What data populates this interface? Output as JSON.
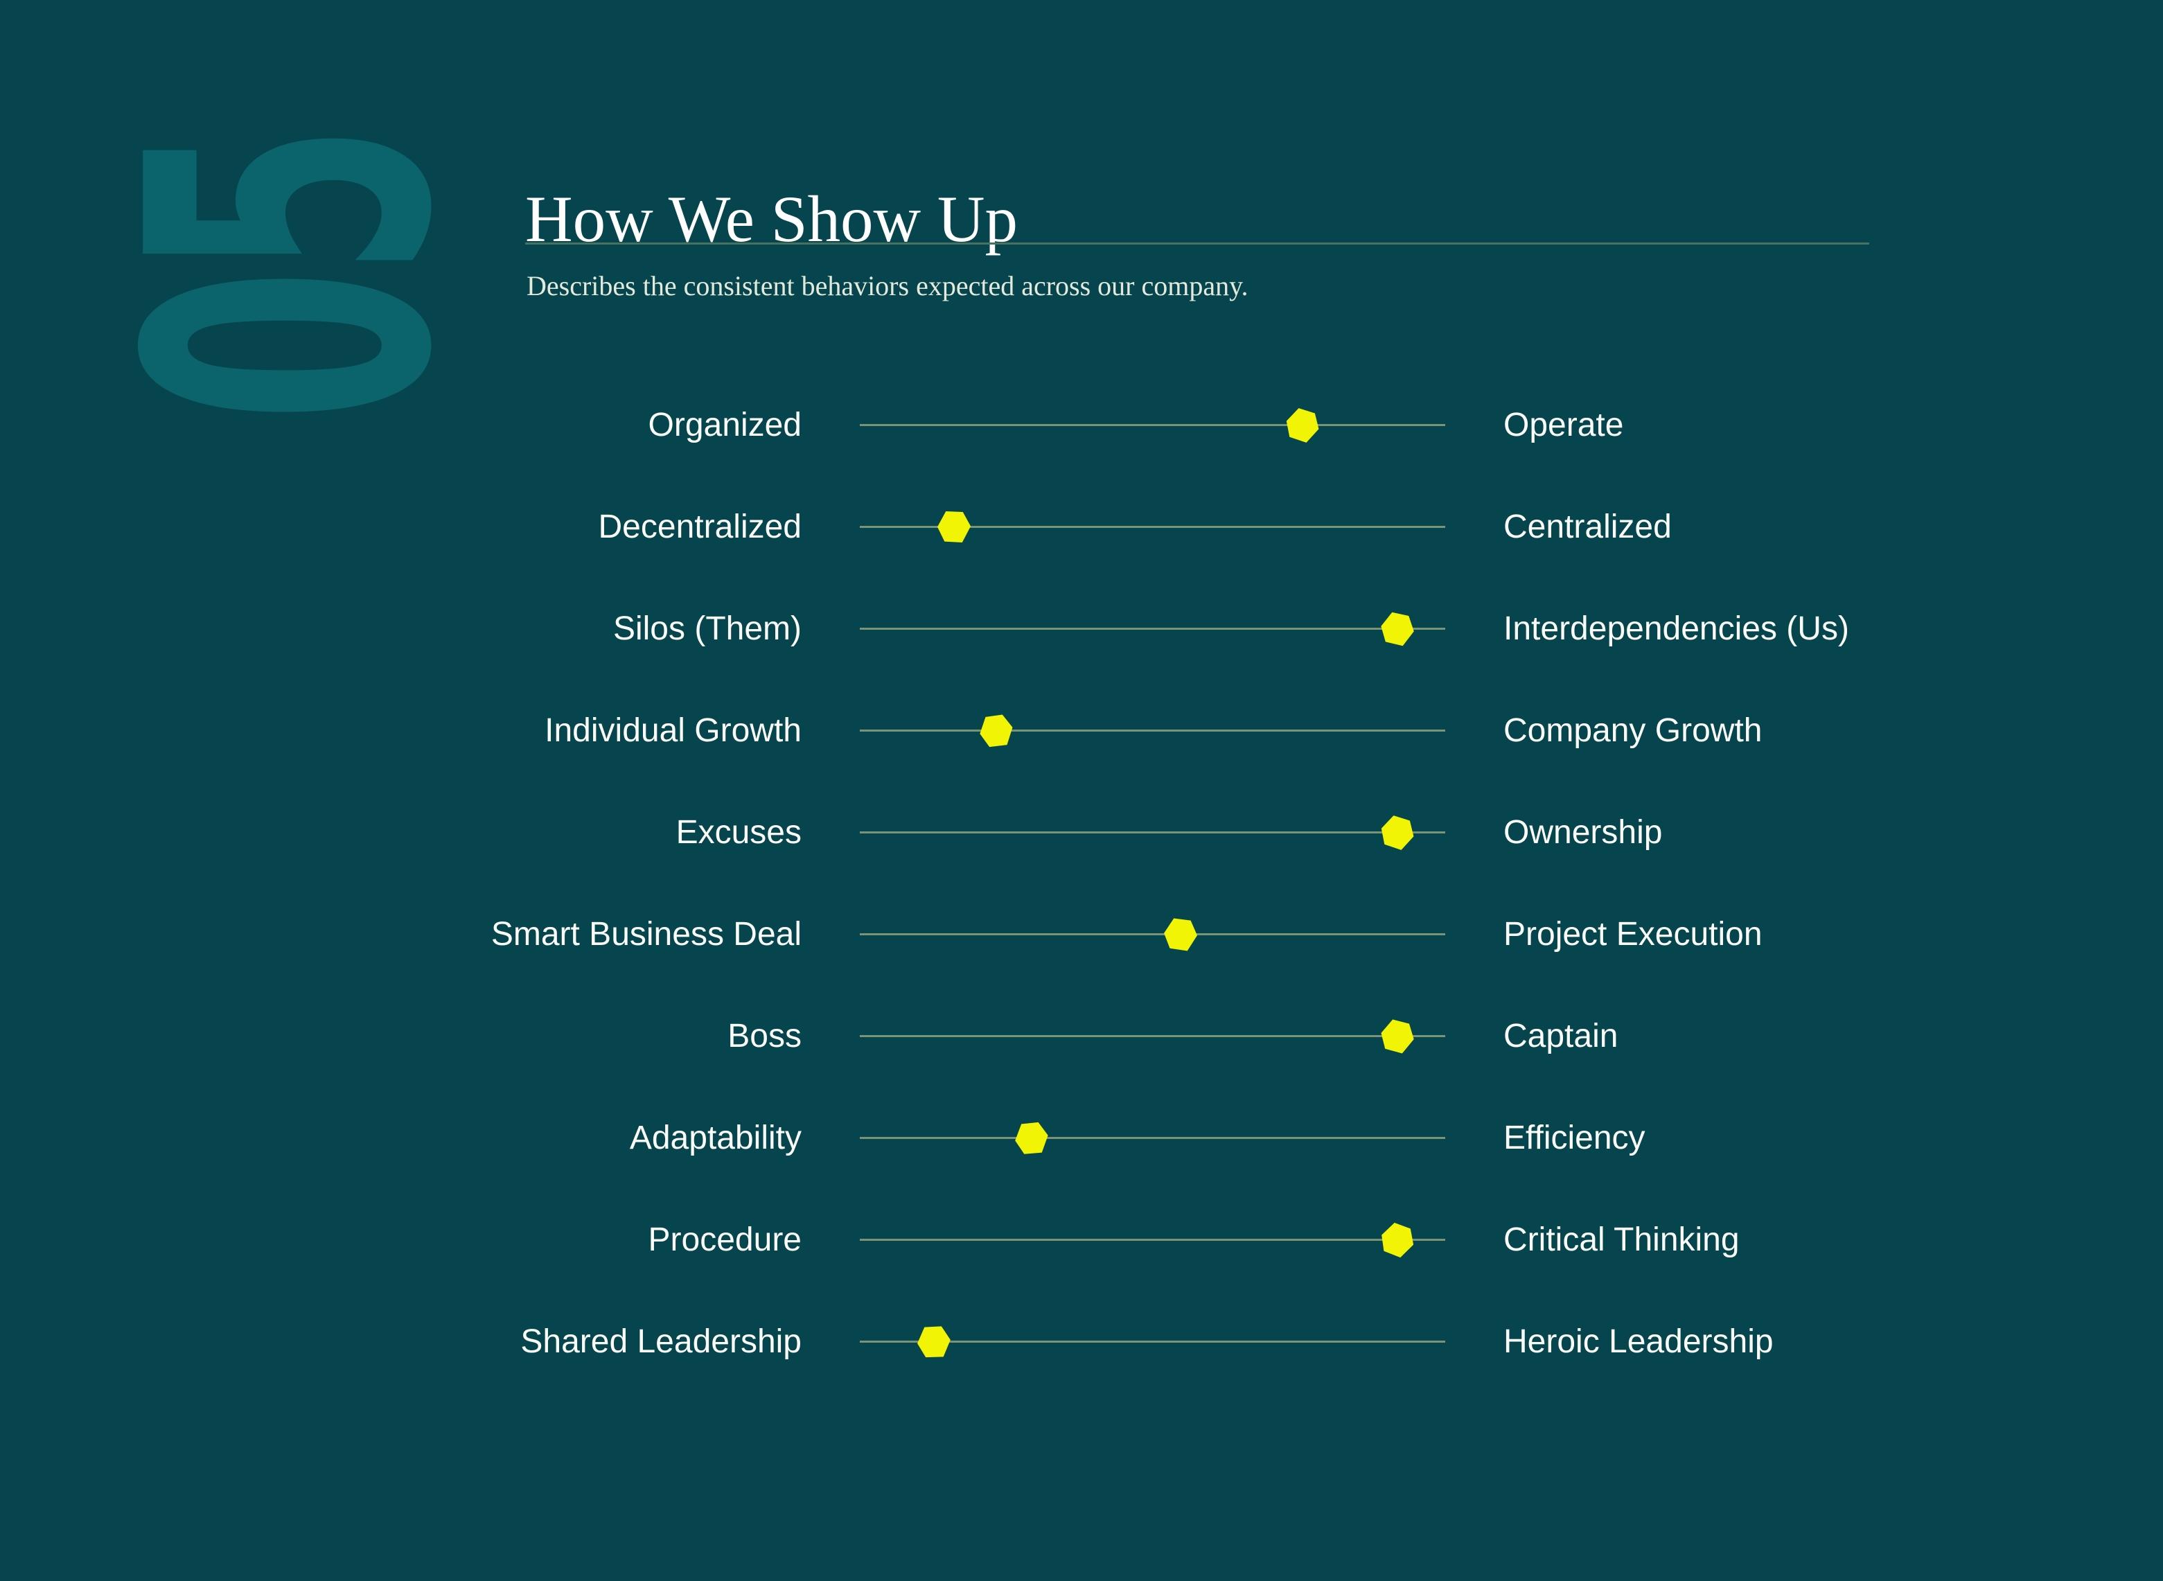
{
  "theme": {
    "bg": "#06454D",
    "watermark_color": "#0B636B",
    "divider_color": "#47725F",
    "track_color": "#7D9377",
    "marker_color": "#F1F505",
    "title_color": "#FFFFFF",
    "subtitle_color": "#E3EADC",
    "label_color": "#FBFDF8"
  },
  "watermark": {
    "text": "05"
  },
  "header": {
    "title": "How We Show Up",
    "subtitle": "Describes the consistent behaviors expected across our company."
  },
  "rows": [
    {
      "left": "Organized",
      "right": "Operate",
      "value": 0.756,
      "tilt": 15
    },
    {
      "left": "Decentralized",
      "right": "Centralized",
      "value": 0.161,
      "tilt": 0
    },
    {
      "left": "Silos (Them)",
      "right": "Interdependencies (Us)",
      "value": 0.918,
      "tilt": 10
    },
    {
      "left": "Individual Growth",
      "right": "Company Growth",
      "value": 0.233,
      "tilt": -10
    },
    {
      "left": "Excuses",
      "right": "Ownership",
      "value": 0.918,
      "tilt": 15
    },
    {
      "left": "Smart Business Deal",
      "right": "Project Execution",
      "value": 0.548,
      "tilt": 5
    },
    {
      "left": "Boss",
      "right": "Captain",
      "value": 0.918,
      "tilt": 12
    },
    {
      "left": "Adaptability",
      "right": "Efficiency",
      "value": 0.293,
      "tilt": -8
    },
    {
      "left": "Procedure",
      "right": "Critical Thinking",
      "value": 0.918,
      "tilt": 18
    },
    {
      "left": "Shared Leadership",
      "right": "Heroic Leadership",
      "value": 0.127,
      "tilt": -5
    }
  ]
}
